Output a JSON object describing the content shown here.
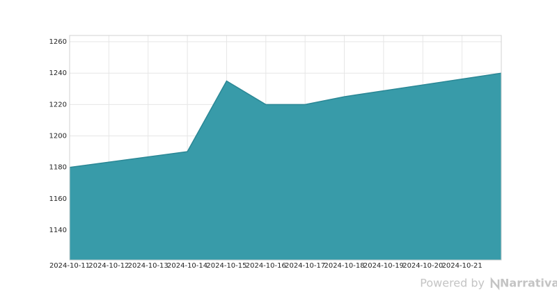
{
  "chart_data": {
    "type": "area",
    "x": [
      "2024-10-11",
      "2024-10-14",
      "2024-10-15",
      "2024-10-16",
      "2024-10-17",
      "2024-10-18",
      "2024-10-22"
    ],
    "values": [
      1180,
      1190,
      1235,
      1220,
      1220,
      1225,
      1240
    ],
    "color": "#3499a7",
    "line_color": "#2a8795",
    "xlim": [
      "2024-10-11",
      "2024-10-22"
    ],
    "xticks": [
      "2024-10-11",
      "2024-10-12",
      "2024-10-13",
      "2024-10-14",
      "2024-10-15",
      "2024-10-16",
      "2024-10-17",
      "2024-10-18",
      "2024-10-19",
      "2024-10-20",
      "2024-10-21"
    ],
    "ylim": [
      1121,
      1264
    ],
    "yticks": [
      1140,
      1160,
      1180,
      1200,
      1220,
      1240,
      1260
    ],
    "grid": true
  },
  "footer": {
    "text": "Powered by",
    "brand": "Narrativa"
  }
}
